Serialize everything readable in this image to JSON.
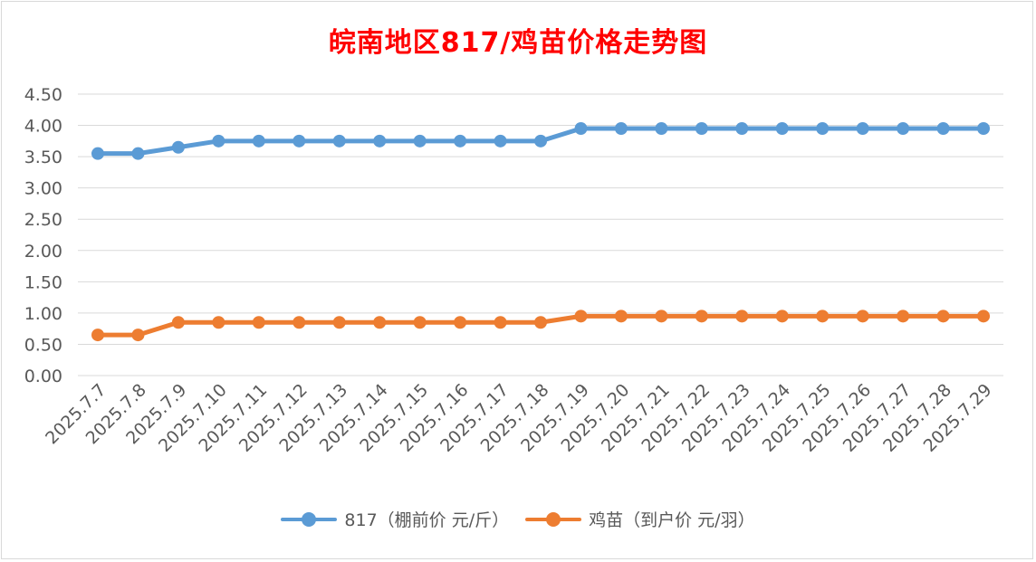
{
  "chart_data": {
    "type": "line",
    "title": "皖南地区817/鸡苗价格走势图",
    "categories": [
      "2025.7.7",
      "2025.7.8",
      "2025.7.9",
      "2025.7.10",
      "2025.7.11",
      "2025.7.12",
      "2025.7.13",
      "2025.7.14",
      "2025.7.15",
      "2025.7.16",
      "2025.7.17",
      "2025.7.18",
      "2025.7.19",
      "2025.7.20",
      "2025.7.21",
      "2025.7.22",
      "2025.7.23",
      "2025.7.24",
      "2025.7.25",
      "2025.7.26",
      "2025.7.27",
      "2025.7.28",
      "2025.7.29"
    ],
    "series": [
      {
        "name": "817（棚前价 元/斤）",
        "color": "#5b9bd5",
        "values": [
          3.55,
          3.55,
          3.65,
          3.75,
          3.75,
          3.75,
          3.75,
          3.75,
          3.75,
          3.75,
          3.75,
          3.75,
          3.95,
          3.95,
          3.95,
          3.95,
          3.95,
          3.95,
          3.95,
          3.95,
          3.95,
          3.95,
          3.95
        ]
      },
      {
        "name": "鸡苗（到户价 元/羽）",
        "color": "#ed7d31",
        "values": [
          0.65,
          0.65,
          0.85,
          0.85,
          0.85,
          0.85,
          0.85,
          0.85,
          0.85,
          0.85,
          0.85,
          0.85,
          0.95,
          0.95,
          0.95,
          0.95,
          0.95,
          0.95,
          0.95,
          0.95,
          0.95,
          0.95,
          0.95
        ]
      }
    ],
    "ylim": [
      0,
      4.5
    ],
    "yticks": [
      "0.00",
      "0.50",
      "1.00",
      "1.50",
      "2.00",
      "2.50",
      "3.00",
      "3.50",
      "4.00",
      "4.50"
    ],
    "grid": true,
    "legend_position": "bottom"
  }
}
